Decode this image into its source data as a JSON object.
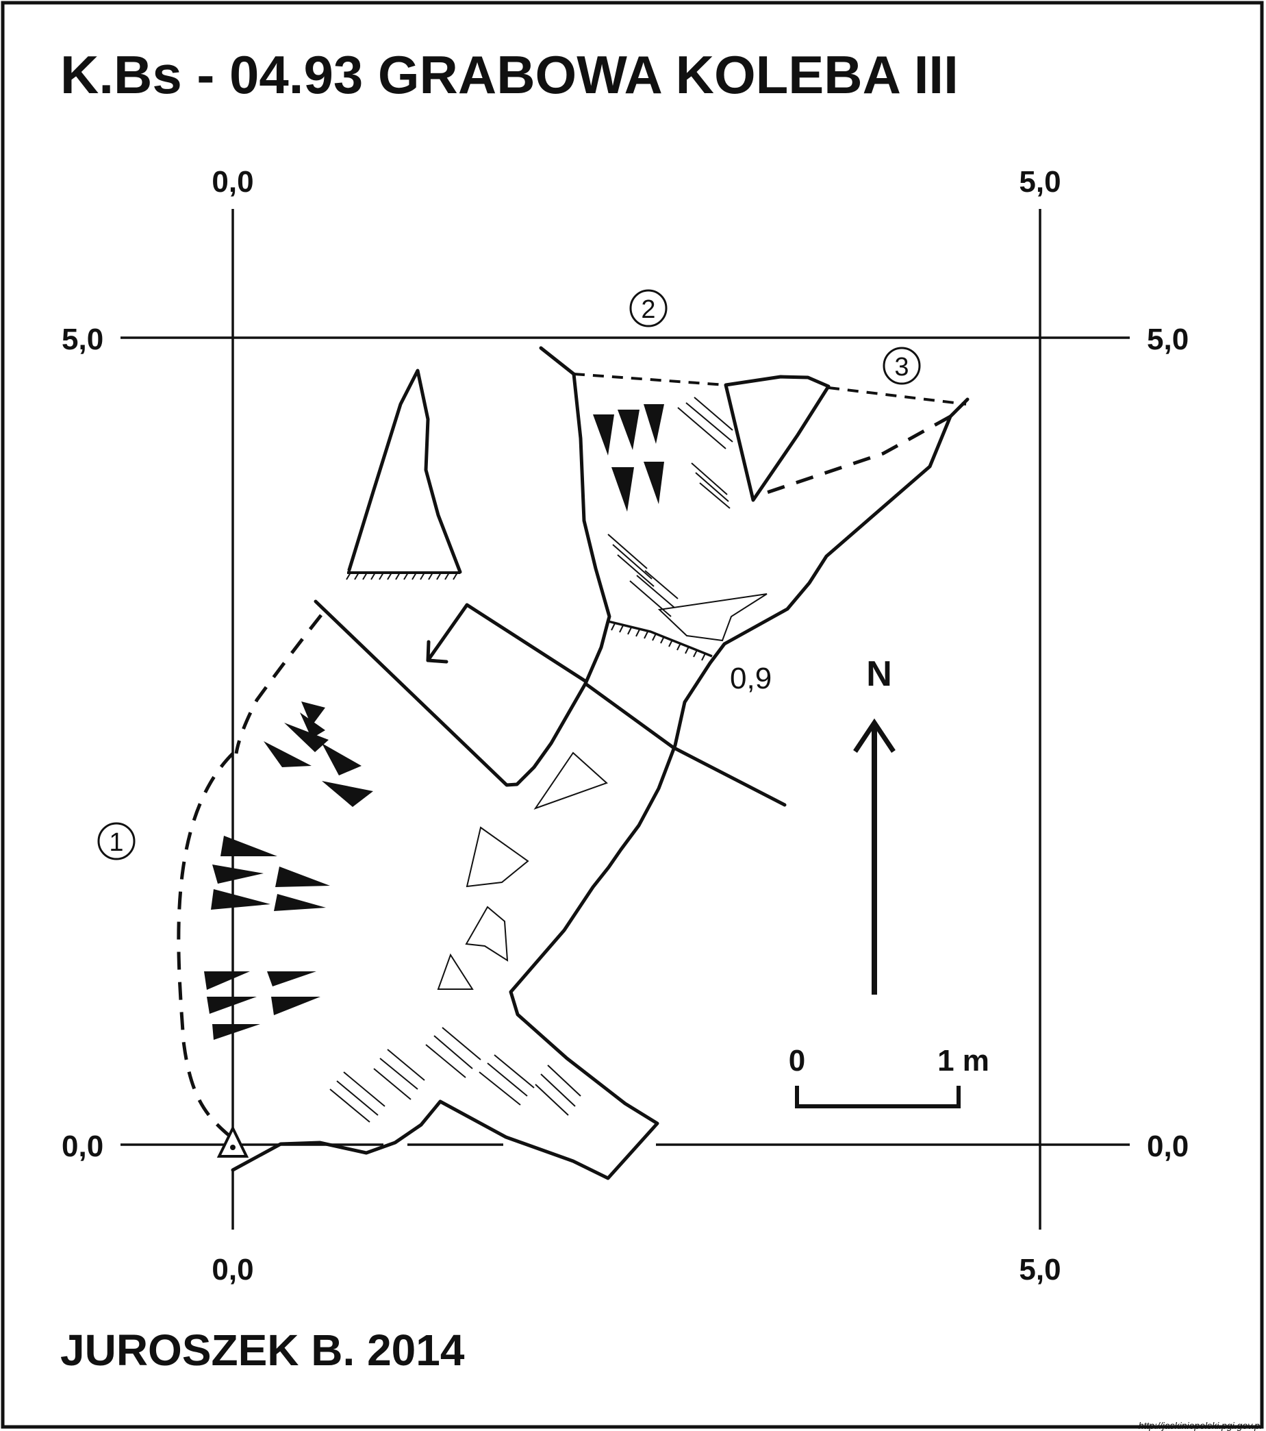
{
  "header": {
    "title": "K.Bs - 04.93  GRABOWA KOLEBA III"
  },
  "grid_labels": {
    "top_left": "0,0",
    "top_right": "5,0",
    "left_upper": "5,0",
    "right_upper": "5,0",
    "left_lower": "0,0",
    "right_lower": "0,0",
    "bottom_left": "0,0",
    "bottom_right": "5,0"
  },
  "markers": {
    "m1": "1",
    "m2": "2",
    "m3": "3"
  },
  "height_label": "0,9",
  "north": {
    "label": "N"
  },
  "scale_bar": {
    "start_label": "0",
    "end_label": "1 m"
  },
  "footer": {
    "author": "JUROSZEK B.  2014",
    "source_url": "http://jaskiniepolski.pgi.gov.pl"
  },
  "colors": {
    "ink": "#111111",
    "background": "#ffffff"
  }
}
